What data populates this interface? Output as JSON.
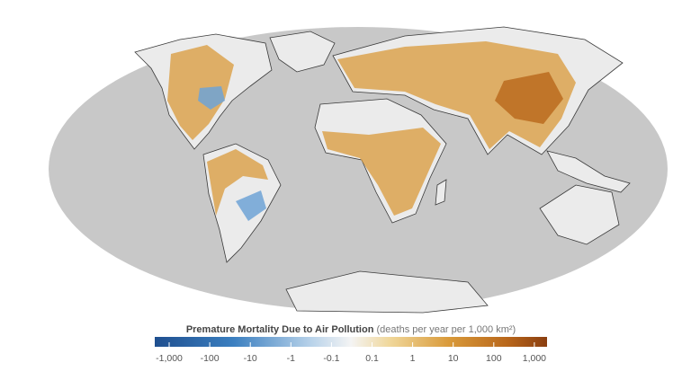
{
  "legend": {
    "title": "Premature Mortality Due to Air Pollution",
    "unit": "(deaths per year per 1,000 km²)",
    "ticks": [
      "-1,000",
      "-100",
      "-10",
      "-1",
      "-0.1",
      "0.1",
      "1",
      "10",
      "100",
      "1,000"
    ]
  }
}
